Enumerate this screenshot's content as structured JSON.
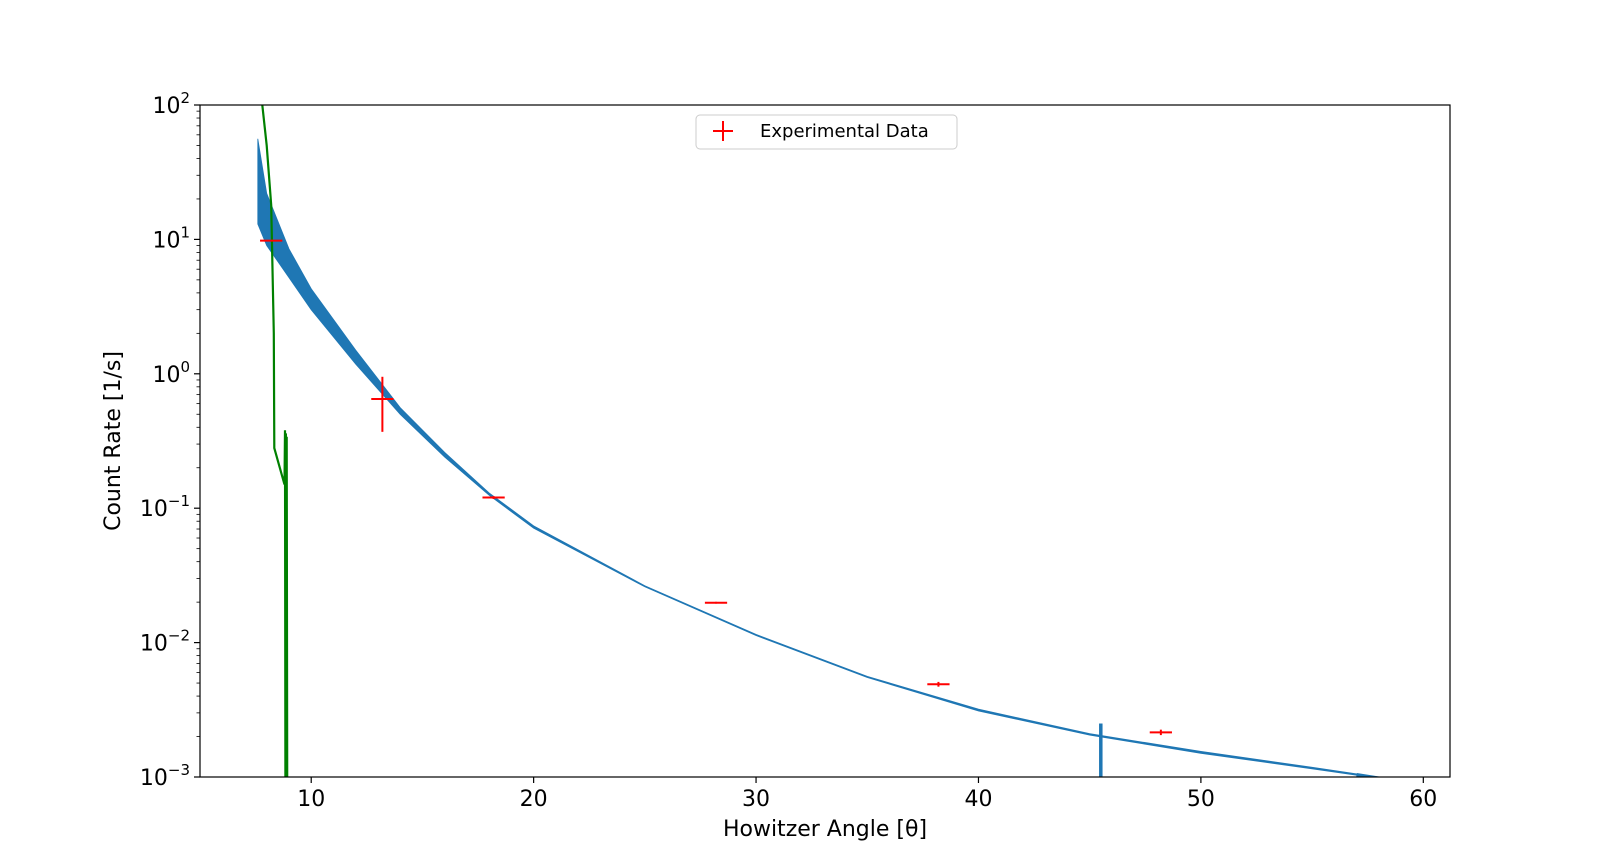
{
  "chart_data": {
    "type": "line",
    "title": "",
    "xlabel": "Howitzer Angle [θ]",
    "ylabel": "Count Rate [1/s]",
    "xlim": [
      5,
      61.2
    ],
    "ylim": [
      0.001,
      100
    ],
    "yscale": "log",
    "grid": false,
    "legend_position": "top-center",
    "x_ticks": [
      10,
      20,
      30,
      40,
      50,
      60
    ],
    "y_ticks": [
      {
        "value": 0.001,
        "base": "10",
        "exp": "−3"
      },
      {
        "value": 0.01,
        "base": "10",
        "exp": "−2"
      },
      {
        "value": 0.1,
        "base": "10",
        "exp": "−1"
      },
      {
        "value": 1,
        "base": "10",
        "exp": "0"
      },
      {
        "value": 10,
        "base": "10",
        "exp": "1"
      },
      {
        "value": 100,
        "base": "10",
        "exp": "2"
      }
    ],
    "colors": {
      "band": "#1f77b4",
      "green": "#008000",
      "data": "#ff0000"
    },
    "band_series": {
      "x": [
        7.6,
        8,
        9,
        10,
        12,
        14,
        16,
        18,
        20,
        25,
        30,
        35,
        40,
        45,
        50,
        55,
        58.5
      ],
      "upper": [
        56,
        22,
        8.5,
        4.3,
        1.5,
        0.56,
        0.26,
        0.13,
        0.074,
        0.0265,
        0.0115,
        0.0056,
        0.0032,
        0.0021,
        0.00155,
        0.00118,
        0.00097
      ],
      "lower": [
        13,
        9,
        5.2,
        3.0,
        1.18,
        0.5,
        0.24,
        0.125,
        0.071,
        0.026,
        0.0113,
        0.0055,
        0.0031,
        0.00205,
        0.0015,
        0.00115,
        0.00095
      ],
      "spike": {
        "x": 45.5,
        "top": 0.0025
      },
      "tail": {
        "x0": 57,
        "x1": 58.5,
        "y0": 0.00104,
        "y1": 0.00095
      }
    },
    "green_series": {
      "x": [
        7.8,
        8.0,
        8.2,
        8.32,
        8.34,
        8.8,
        8.82,
        8.84,
        8.86,
        8.88,
        8.9,
        8.92
      ],
      "y": [
        100,
        50,
        18,
        2.0,
        0.28,
        0.15,
        0.38,
        0.001,
        0.36,
        0.001,
        0.34,
        0.001
      ]
    },
    "series": [
      {
        "name": "Experimental Data",
        "x": [
          8.2,
          13.2,
          18.2,
          28.2,
          38.2,
          48.2
        ],
        "y": [
          9.8,
          0.65,
          0.12,
          0.0198,
          0.0049,
          0.00215
        ],
        "xerr": [
          0.5,
          0.5,
          0.5,
          0.5,
          0.5,
          0.5
        ],
        "yerr_low": [
          0,
          0.28,
          0.003,
          0.0003,
          0.0002,
          0.0001
        ],
        "yerr_high": [
          0,
          0.3,
          0.003,
          0.0003,
          0.0002,
          0.0001
        ]
      }
    ]
  }
}
